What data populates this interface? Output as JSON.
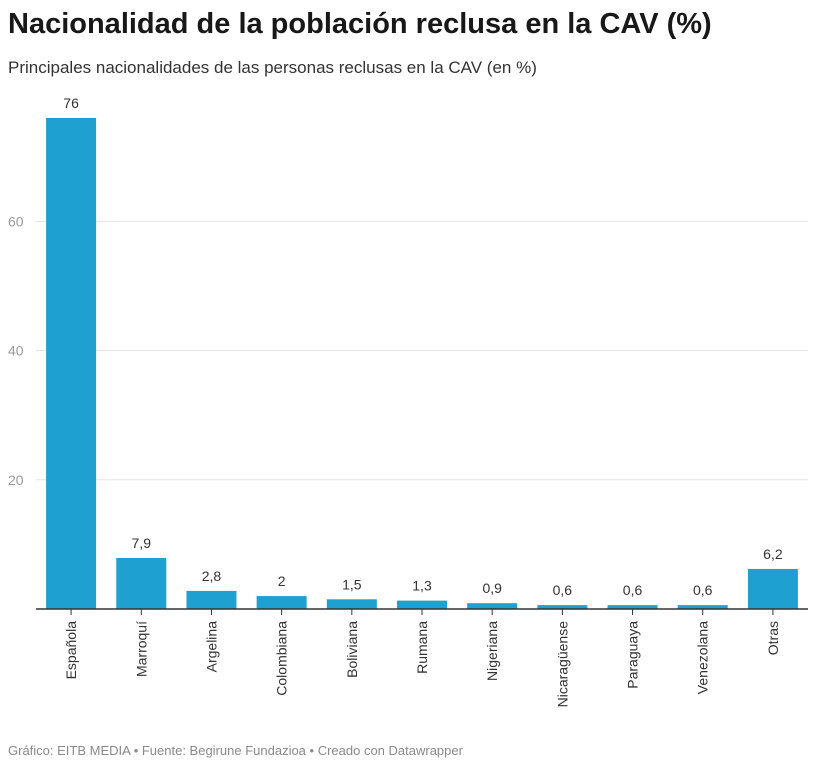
{
  "header": {
    "title": "Nacionalidad de la población reclusa en la CAV (%)",
    "subtitle": "Principales nacionalidades de las personas reclusas en la CAV (en %)"
  },
  "footer": {
    "text": "Gráfico: EITB MEDIA • Fuente: Begirune Fundazioa • Creado con Datawrapper"
  },
  "chart_data": {
    "type": "bar",
    "title": "Nacionalidad de la población reclusa en la CAV (%)",
    "subtitle": "Principales nacionalidades de las personas reclusas en la CAV (en %)",
    "categories": [
      "Española",
      "Marroquí",
      "Argelina",
      "Colombiana",
      "Boliviana",
      "Rumana",
      "Nigeriana",
      "Nicaragüense",
      "Paraguaya",
      "Venezolana",
      "Otras"
    ],
    "values": [
      76,
      7.9,
      2.8,
      2,
      1.5,
      1.3,
      0.9,
      0.6,
      0.6,
      0.6,
      6.2
    ],
    "value_labels": [
      "76",
      "7,9",
      "2,8",
      "2",
      "1,5",
      "1,3",
      "0,9",
      "0,6",
      "0,6",
      "0,6",
      "6,2"
    ],
    "yticks": [
      20,
      40,
      60
    ],
    "ylim": [
      0,
      76
    ],
    "grid": true,
    "bar_color": "#1ea0d0",
    "xlabel": "",
    "ylabel": ""
  }
}
